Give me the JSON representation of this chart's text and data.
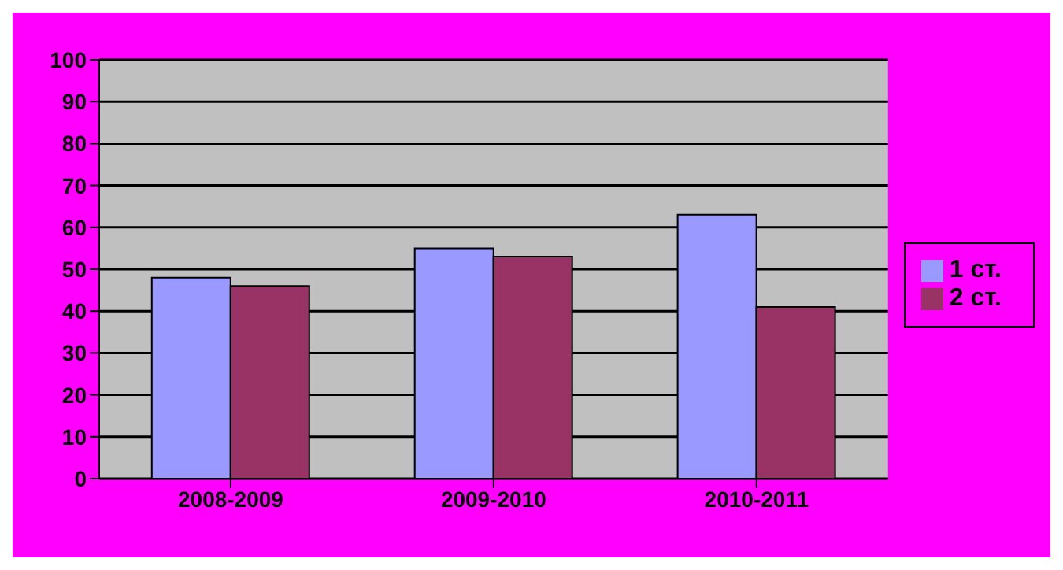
{
  "chart_data": {
    "type": "bar",
    "categories": [
      "2008-2009",
      "2009-2010",
      "2010-2011"
    ],
    "series": [
      {
        "name": "1 ст.",
        "color": "#9999ff",
        "values": [
          48,
          55,
          63
        ]
      },
      {
        "name": "2 ст.",
        "color": "#993366",
        "values": [
          46,
          53,
          41
        ]
      }
    ],
    "ylim": [
      0,
      100
    ],
    "yticks": [
      0,
      10,
      20,
      30,
      40,
      50,
      60,
      70,
      80,
      90,
      100
    ],
    "grid": "y",
    "legend": "right"
  }
}
